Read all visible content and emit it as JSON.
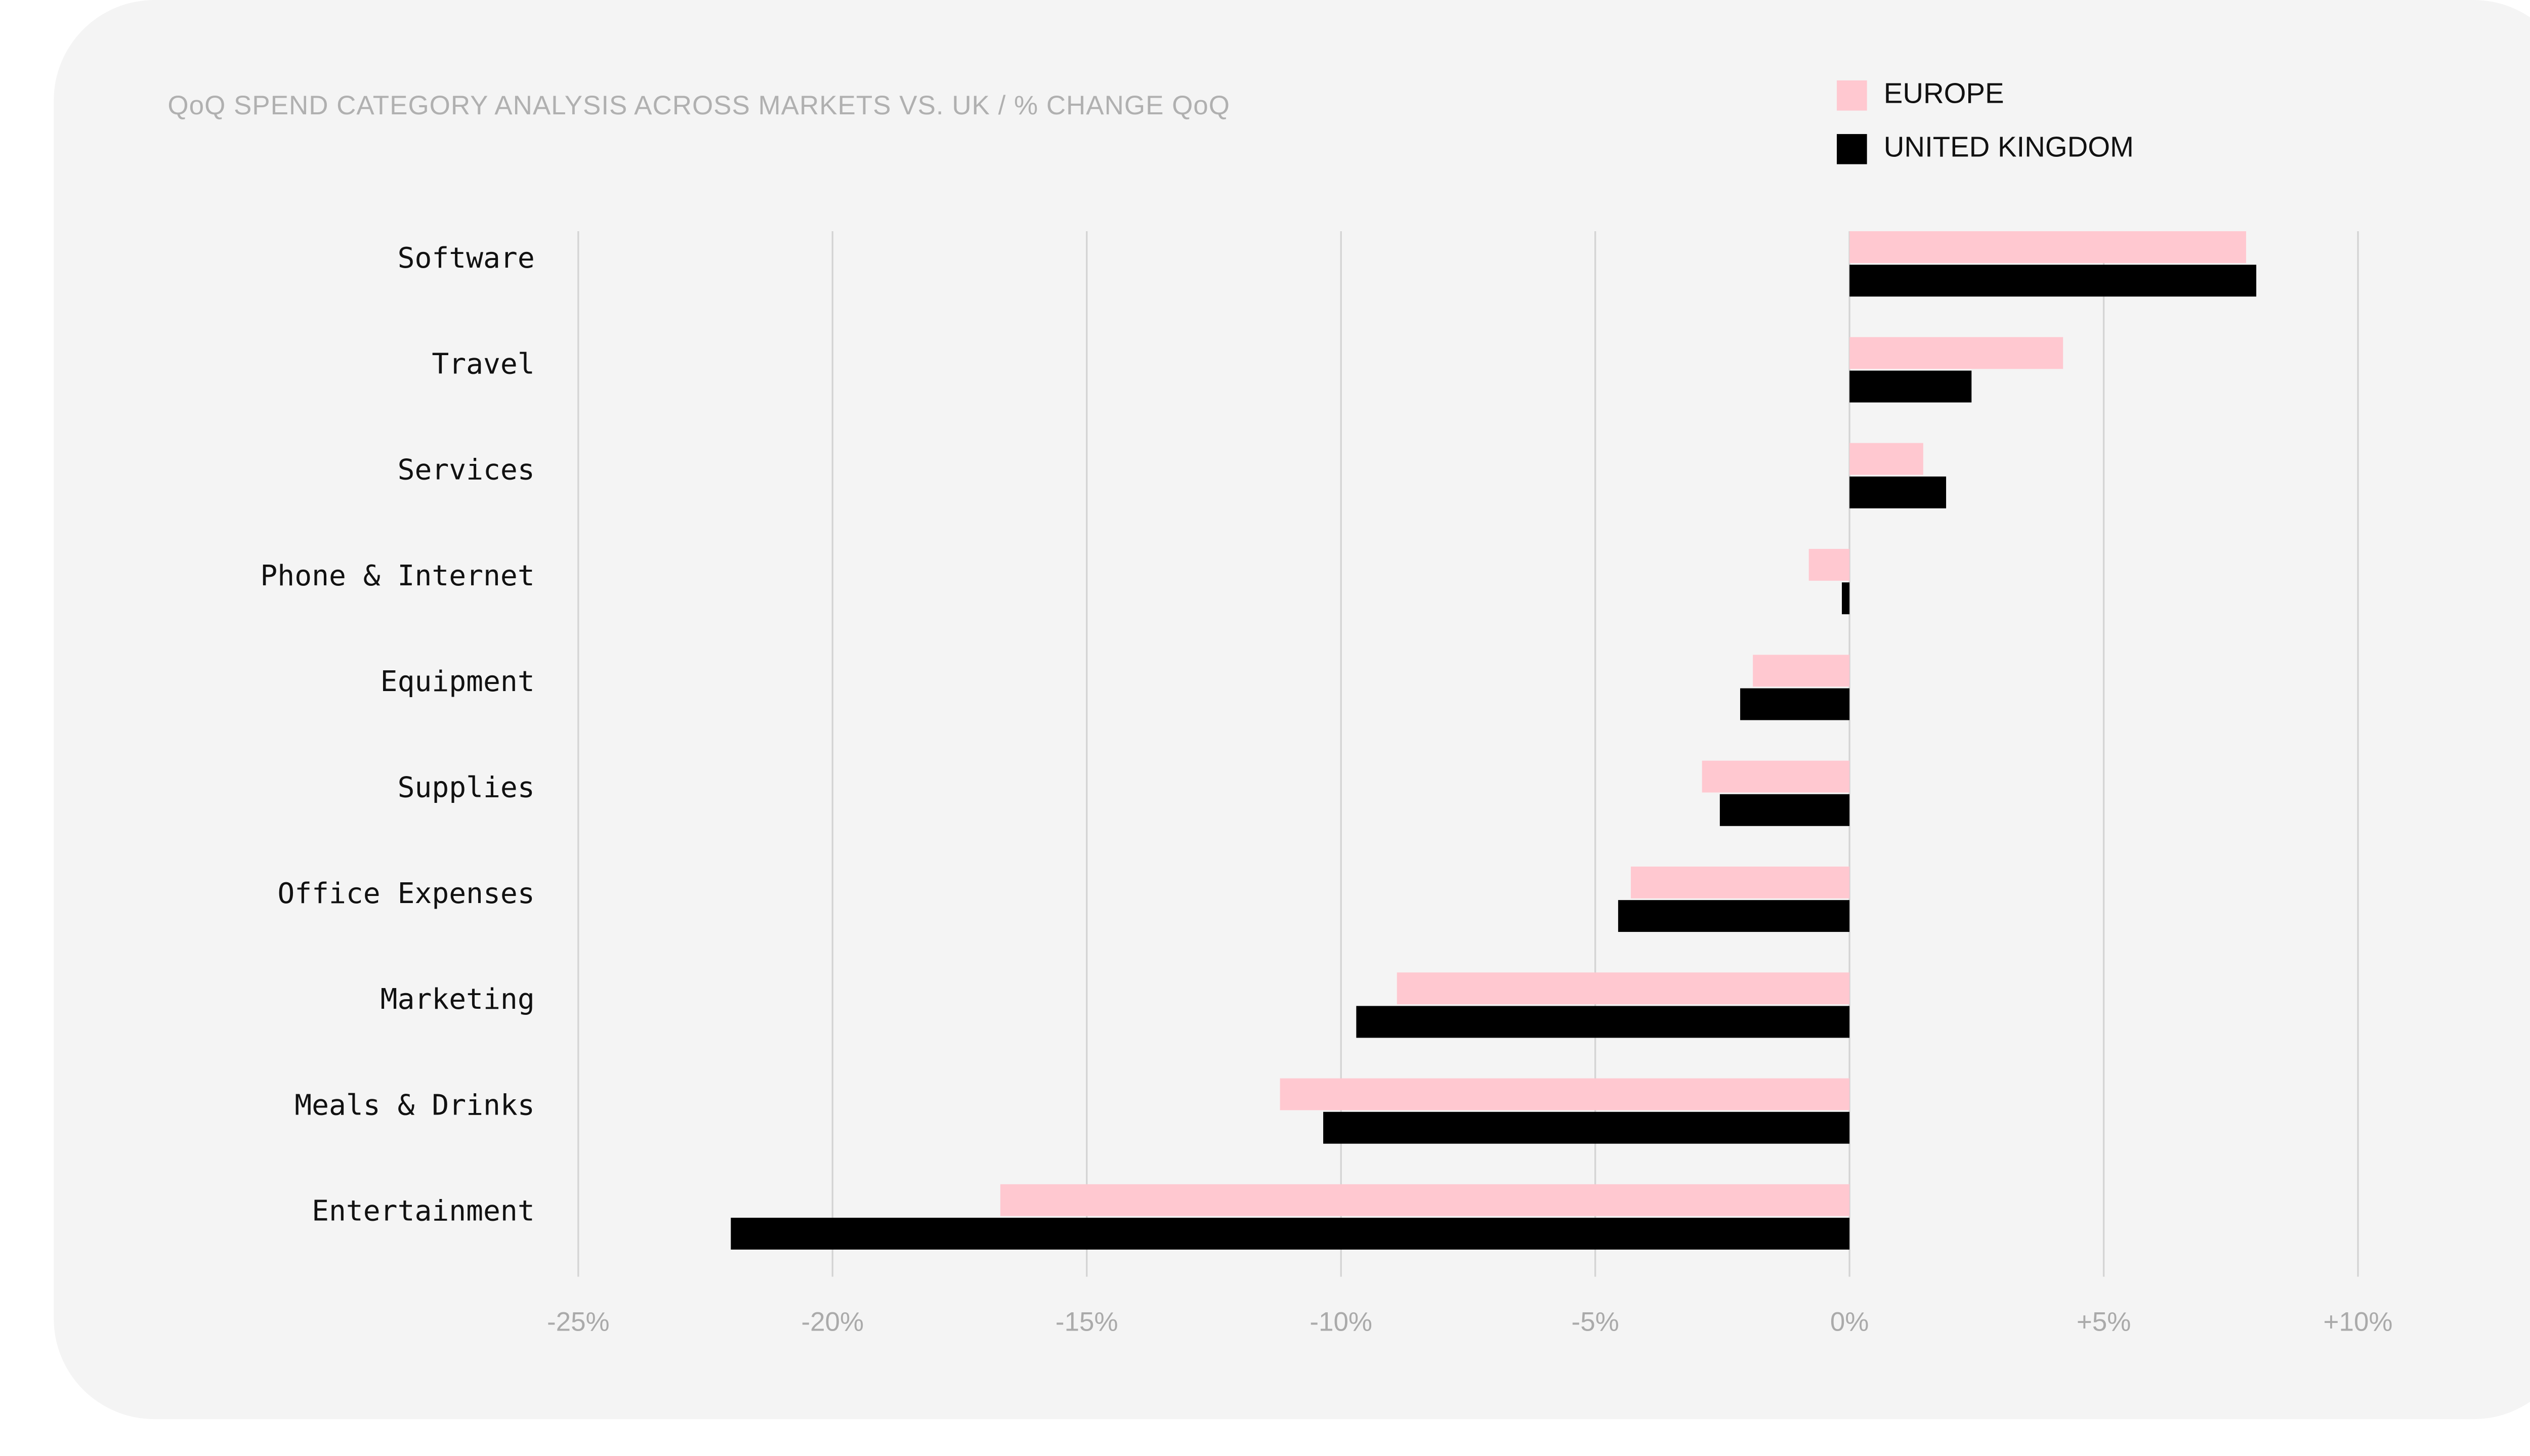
{
  "chart_data": {
    "type": "hbar",
    "title": "QoQ SPEND CATEGORY ANALYSIS ACROSS MARKETS VS. UK / % CHANGE QoQ",
    "categories": [
      "Software",
      "Travel",
      "Services",
      "Phone & Internet",
      "Equipment",
      "Supplies",
      "Office Expenses",
      "Marketing",
      "Meals & Drinks",
      "Entertainment"
    ],
    "series": [
      {
        "name": "EUROPE",
        "color": "#ffc8d0",
        "values": [
          7.8,
          4.2,
          1.45,
          -0.8,
          -1.9,
          -2.9,
          -4.3,
          -8.9,
          -11.2,
          -16.7
        ]
      },
      {
        "name": "UNITED KINGDOM",
        "color": "#000000",
        "values": [
          8.0,
          2.4,
          1.9,
          -0.15,
          -2.15,
          -2.55,
          -4.55,
          -9.7,
          -10.35,
          -22.0
        ]
      }
    ],
    "xlim": [
      -25,
      10
    ],
    "xticks": [
      {
        "value": -25,
        "label": "-25%"
      },
      {
        "value": -20,
        "label": "-20%"
      },
      {
        "value": -15,
        "label": "-15%"
      },
      {
        "value": -10,
        "label": "-10%"
      },
      {
        "value": -5,
        "label": "-5%"
      },
      {
        "value": 0,
        "label": "0%"
      },
      {
        "value": 5,
        "label": "+5%"
      },
      {
        "value": 10,
        "label": "+10%"
      }
    ],
    "grid": true,
    "legend": "top-right"
  }
}
